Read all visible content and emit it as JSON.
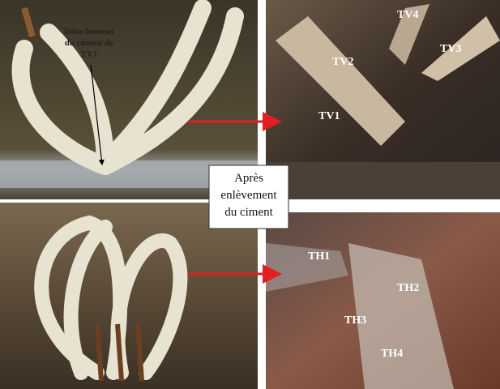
{
  "annotation": {
    "lines": [
      "Détachement",
      "du ciment de",
      "TV1"
    ]
  },
  "caption": {
    "lines": [
      "Après",
      "enlèvement",
      "du ciment"
    ]
  },
  "top_right": {
    "labels": [
      "TV4",
      "TV2",
      "TV3",
      "TV1"
    ]
  },
  "bottom_right": {
    "labels": [
      "TH1",
      "TH2",
      "TH3",
      "TH4"
    ]
  }
}
